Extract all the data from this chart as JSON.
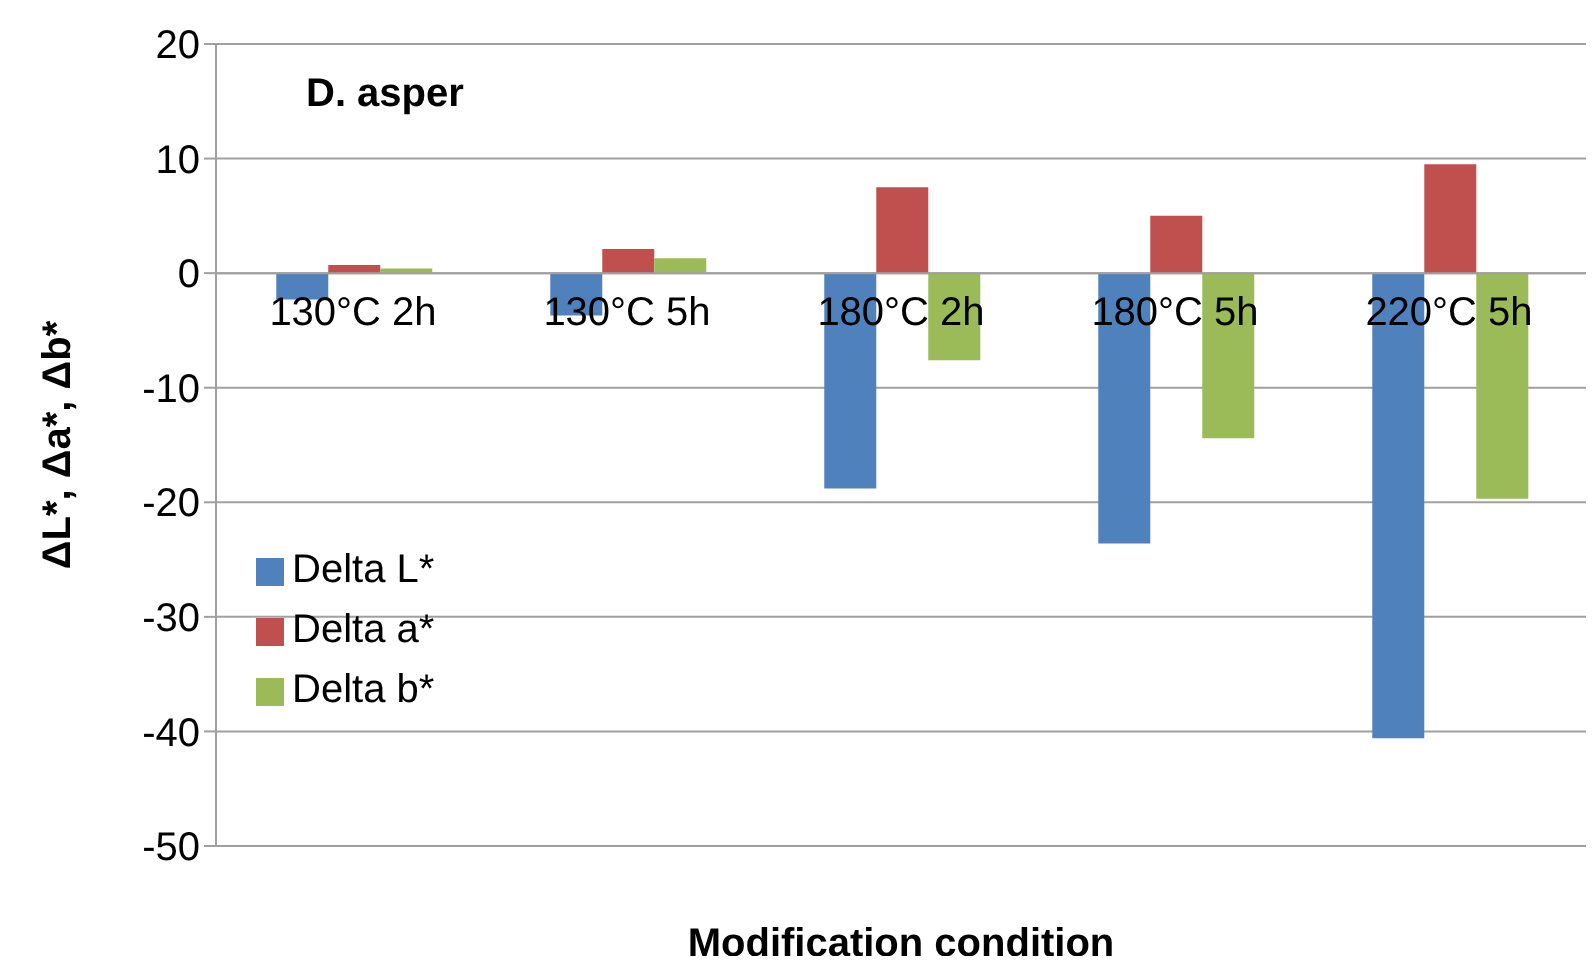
{
  "chart_data": {
    "type": "bar",
    "title": "D. asper",
    "xlabel": "Modification condition",
    "ylabel": "ΔL*, Δa*, Δb*",
    "categories": [
      "130°C 2h",
      "130°C 5h",
      "180°C 2h",
      "180°C 5h",
      "220°C 5h"
    ],
    "series": [
      {
        "name": "Delta L*",
        "color": "#4f81bd",
        "values": [
          -2.3,
          -3.7,
          -18.8,
          -23.6,
          -40.6
        ]
      },
      {
        "name": "Delta a*",
        "color": "#c0504d",
        "values": [
          0.7,
          2.1,
          7.5,
          5.0,
          9.5
        ]
      },
      {
        "name": "Delta b*",
        "color": "#9bbb59",
        "values": [
          0.4,
          1.3,
          -7.6,
          -14.4,
          -19.7
        ]
      }
    ],
    "ylim": [
      -50,
      20
    ],
    "yticks": [
      -50,
      -40,
      -30,
      -20,
      -10,
      0,
      10,
      20
    ],
    "grid": "y",
    "legend": "left"
  }
}
